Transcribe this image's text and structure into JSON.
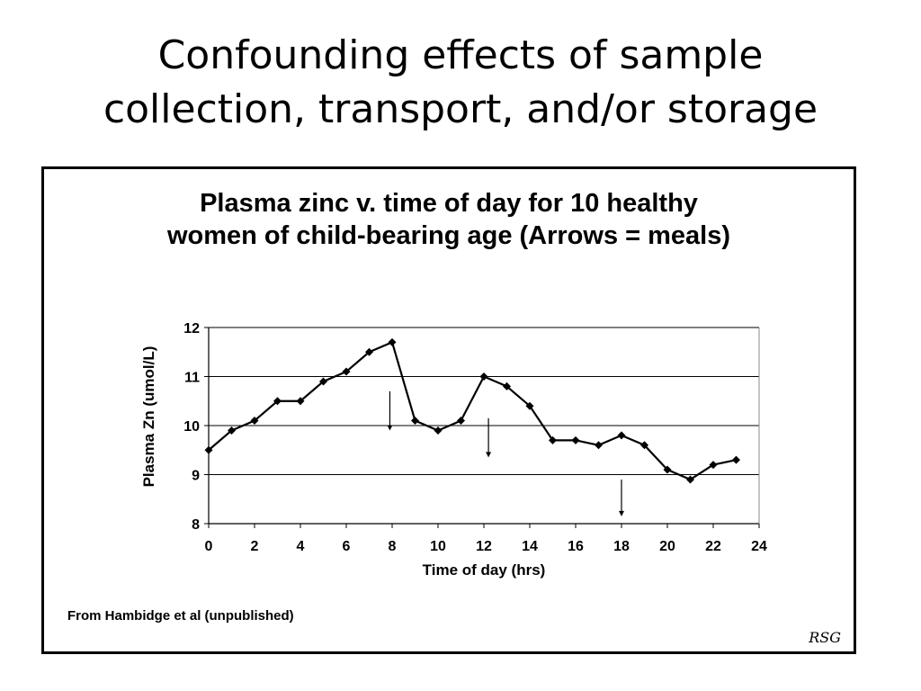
{
  "slide": {
    "title_line1": "Confounding effects of sample",
    "title_line2": "collection, transport, and/or storage"
  },
  "figure": {
    "source_note": "From Hambidge et al (unpublished)",
    "signature": "RSG"
  },
  "chart_data": {
    "type": "line",
    "title_line1": "Plasma zinc v. time of day for 10 healthy",
    "title_line2": "women of child-bearing age (Arrows = meals)",
    "xlabel": "Time of day (hrs)",
    "ylabel": "Plasma Zn (umol/L)",
    "xlim": [
      0,
      24
    ],
    "ylim": [
      8,
      12
    ],
    "xticks": [
      0,
      2,
      4,
      6,
      8,
      10,
      12,
      14,
      16,
      18,
      20,
      22,
      24
    ],
    "yticks": [
      8,
      9,
      10,
      11,
      12
    ],
    "grid": "horizontal",
    "legend": "none",
    "series": [
      {
        "x": [
          0,
          1,
          2,
          3,
          4,
          5,
          6,
          7,
          8,
          9,
          10,
          11,
          12,
          13,
          14,
          15,
          16,
          17,
          18,
          19,
          20,
          21,
          22,
          23
        ],
        "y": [
          9.5,
          9.9,
          10.1,
          10.5,
          10.5,
          10.9,
          11.1,
          11.5,
          11.7,
          10.1,
          9.9,
          10.1,
          11.0,
          10.8,
          10.4,
          9.7,
          9.7,
          9.6,
          9.8,
          9.6,
          9.1,
          8.9,
          9.2,
          9.3
        ],
        "color": "#000000",
        "marker": "diamond"
      }
    ],
    "annotations": [
      {
        "type": "arrow-down",
        "x": 7.9,
        "y_from": 10.7,
        "y_to": 9.9
      },
      {
        "type": "arrow-down",
        "x": 12.2,
        "y_from": 10.15,
        "y_to": 9.35
      },
      {
        "type": "arrow-down",
        "x": 18.0,
        "y_from": 8.9,
        "y_to": 8.15
      }
    ]
  }
}
